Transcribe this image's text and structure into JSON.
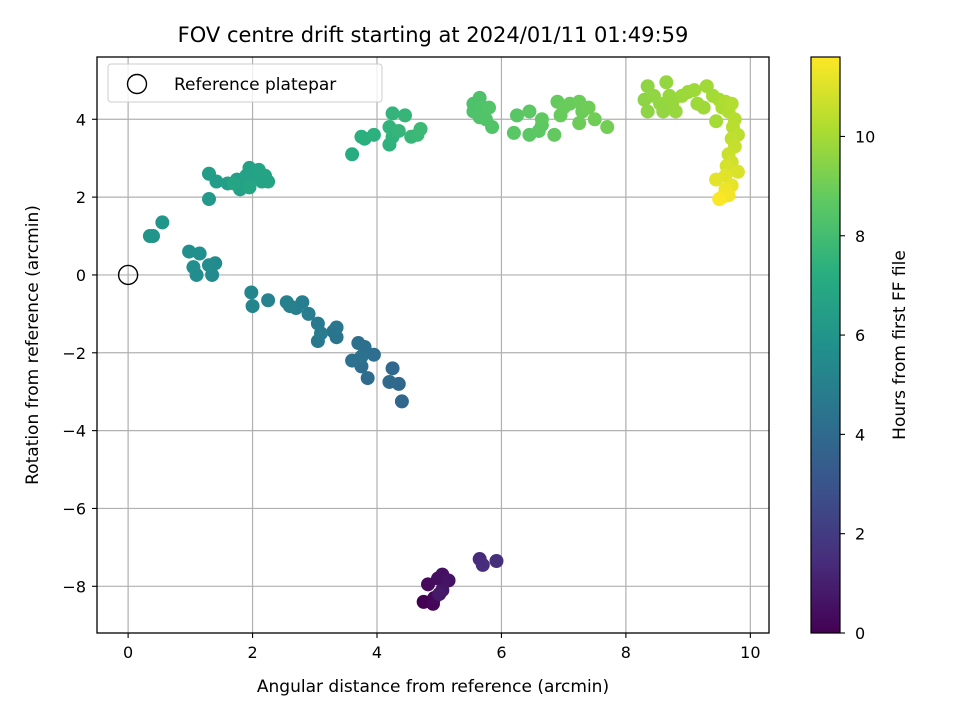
{
  "chart_data": {
    "type": "scatter",
    "title": "FOV centre drift starting at 2024/01/11 01:49:59",
    "xlabel": "Angular distance from reference (arcmin)",
    "ylabel": "Rotation from reference (arcmin)",
    "xlim": [
      -0.5,
      10.3
    ],
    "ylim": [
      -9.2,
      5.6
    ],
    "xticks": [
      0,
      2,
      4,
      6,
      8,
      10
    ],
    "yticks": [
      -8,
      -6,
      -4,
      -2,
      0,
      2,
      4
    ],
    "grid": true,
    "legend": {
      "placement": "top-left",
      "entries": [
        "Reference platepar"
      ]
    },
    "reference_point": {
      "x": 0,
      "y": 0,
      "marker": "open-circle",
      "color": "#000000"
    },
    "colorbar": {
      "label": "Hours from first FF file",
      "range": [
        0,
        11.6
      ],
      "ticks": [
        0,
        2,
        4,
        6,
        8,
        10
      ],
      "colormap": "viridis"
    },
    "series": [
      {
        "points": [
          {
            "x": 4.75,
            "y": -8.4,
            "t": 0.0
          },
          {
            "x": 4.9,
            "y": -8.45,
            "t": 0.1
          },
          {
            "x": 4.92,
            "y": -8.3,
            "t": 0.2
          },
          {
            "x": 4.82,
            "y": -7.95,
            "t": 0.3
          },
          {
            "x": 4.98,
            "y": -7.8,
            "t": 0.4
          },
          {
            "x": 5.05,
            "y": -7.7,
            "t": 0.5
          },
          {
            "x": 5.15,
            "y": -7.85,
            "t": 0.6
          },
          {
            "x": 5.05,
            "y": -8.1,
            "t": 0.7
          },
          {
            "x": 5.0,
            "y": -8.2,
            "t": 0.8
          },
          {
            "x": 5.65,
            "y": -7.3,
            "t": 1.4
          },
          {
            "x": 5.7,
            "y": -7.45,
            "t": 1.5
          },
          {
            "x": 5.92,
            "y": -7.35,
            "t": 1.6
          },
          {
            "x": 4.4,
            "y": -3.25,
            "t": 3.9
          },
          {
            "x": 4.35,
            "y": -2.8,
            "t": 3.95
          },
          {
            "x": 4.25,
            "y": -2.4,
            "t": 4.0
          },
          {
            "x": 4.2,
            "y": -2.75,
            "t": 4.05
          },
          {
            "x": 3.85,
            "y": -2.65,
            "t": 4.1
          },
          {
            "x": 3.75,
            "y": -2.35,
            "t": 4.15
          },
          {
            "x": 3.95,
            "y": -2.05,
            "t": 4.2
          },
          {
            "x": 3.8,
            "y": -1.85,
            "t": 4.25
          },
          {
            "x": 3.7,
            "y": -1.75,
            "t": 4.3
          },
          {
            "x": 3.75,
            "y": -2.1,
            "t": 4.35
          },
          {
            "x": 3.6,
            "y": -2.2,
            "t": 4.4
          },
          {
            "x": 3.35,
            "y": -1.6,
            "t": 4.5
          },
          {
            "x": 3.3,
            "y": -1.45,
            "t": 4.55
          },
          {
            "x": 3.35,
            "y": -1.35,
            "t": 4.6
          },
          {
            "x": 3.05,
            "y": -1.7,
            "t": 4.7
          },
          {
            "x": 3.05,
            "y": -1.25,
            "t": 4.75
          },
          {
            "x": 3.1,
            "y": -1.5,
            "t": 4.8
          },
          {
            "x": 2.9,
            "y": -1.0,
            "t": 4.9
          },
          {
            "x": 2.8,
            "y": -0.7,
            "t": 4.95
          },
          {
            "x": 2.7,
            "y": -0.85,
            "t": 5.0
          },
          {
            "x": 2.6,
            "y": -0.8,
            "t": 5.05
          },
          {
            "x": 2.55,
            "y": -0.7,
            "t": 5.1
          },
          {
            "x": 2.25,
            "y": -0.65,
            "t": 5.2
          },
          {
            "x": 2.0,
            "y": -0.8,
            "t": 5.3
          },
          {
            "x": 1.98,
            "y": -0.45,
            "t": 5.35
          },
          {
            "x": 1.35,
            "y": 0.0,
            "t": 5.5
          },
          {
            "x": 1.4,
            "y": 0.3,
            "t": 5.55
          },
          {
            "x": 1.3,
            "y": 0.25,
            "t": 5.6
          },
          {
            "x": 1.1,
            "y": 0.0,
            "t": 5.65
          },
          {
            "x": 1.05,
            "y": 0.2,
            "t": 5.7
          },
          {
            "x": 1.15,
            "y": 0.55,
            "t": 5.75
          },
          {
            "x": 0.98,
            "y": 0.6,
            "t": 5.8
          },
          {
            "x": 0.4,
            "y": 1.0,
            "t": 6.0
          },
          {
            "x": 0.35,
            "y": 1.0,
            "t": 6.05
          },
          {
            "x": 0.55,
            "y": 1.35,
            "t": 6.1
          },
          {
            "x": 1.3,
            "y": 1.95,
            "t": 6.3
          },
          {
            "x": 1.3,
            "y": 2.6,
            "t": 6.4
          },
          {
            "x": 1.42,
            "y": 2.4,
            "t": 6.45
          },
          {
            "x": 1.6,
            "y": 2.35,
            "t": 6.5
          },
          {
            "x": 1.75,
            "y": 2.45,
            "t": 6.55
          },
          {
            "x": 1.85,
            "y": 2.3,
            "t": 6.6
          },
          {
            "x": 1.8,
            "y": 2.2,
            "t": 6.62
          },
          {
            "x": 1.9,
            "y": 2.55,
            "t": 6.65
          },
          {
            "x": 1.95,
            "y": 2.75,
            "t": 6.7
          },
          {
            "x": 2.05,
            "y": 2.5,
            "t": 6.72
          },
          {
            "x": 2.1,
            "y": 2.7,
            "t": 6.75
          },
          {
            "x": 2.15,
            "y": 2.4,
            "t": 6.78
          },
          {
            "x": 2.2,
            "y": 2.55,
            "t": 6.8
          },
          {
            "x": 2.25,
            "y": 2.4,
            "t": 6.82
          },
          {
            "x": 1.95,
            "y": 2.25,
            "t": 6.84
          },
          {
            "x": 1.7,
            "y": 2.35,
            "t": 6.86
          },
          {
            "x": 3.6,
            "y": 3.1,
            "t": 7.2
          },
          {
            "x": 3.8,
            "y": 3.5,
            "t": 7.3
          },
          {
            "x": 3.75,
            "y": 3.55,
            "t": 7.35
          },
          {
            "x": 3.95,
            "y": 3.6,
            "t": 7.4
          },
          {
            "x": 4.2,
            "y": 3.35,
            "t": 7.45
          },
          {
            "x": 4.25,
            "y": 3.55,
            "t": 7.5
          },
          {
            "x": 4.2,
            "y": 3.8,
            "t": 7.55
          },
          {
            "x": 4.25,
            "y": 4.15,
            "t": 7.6
          },
          {
            "x": 4.35,
            "y": 3.7,
            "t": 7.65
          },
          {
            "x": 4.45,
            "y": 4.1,
            "t": 7.7
          },
          {
            "x": 4.55,
            "y": 3.55,
            "t": 7.75
          },
          {
            "x": 4.65,
            "y": 3.6,
            "t": 7.8
          },
          {
            "x": 4.7,
            "y": 3.75,
            "t": 7.85
          },
          {
            "x": 5.55,
            "y": 4.4,
            "t": 8.3
          },
          {
            "x": 5.55,
            "y": 4.2,
            "t": 8.32
          },
          {
            "x": 5.65,
            "y": 4.55,
            "t": 8.35
          },
          {
            "x": 5.7,
            "y": 4.3,
            "t": 8.38
          },
          {
            "x": 5.65,
            "y": 4.05,
            "t": 8.4
          },
          {
            "x": 5.75,
            "y": 4.0,
            "t": 8.42
          },
          {
            "x": 5.85,
            "y": 3.8,
            "t": 8.45
          },
          {
            "x": 5.8,
            "y": 4.3,
            "t": 8.47
          },
          {
            "x": 6.25,
            "y": 4.1,
            "t": 8.6
          },
          {
            "x": 6.2,
            "y": 3.65,
            "t": 8.62
          },
          {
            "x": 6.45,
            "y": 3.6,
            "t": 8.65
          },
          {
            "x": 6.45,
            "y": 4.2,
            "t": 8.68
          },
          {
            "x": 6.6,
            "y": 3.7,
            "t": 8.7
          },
          {
            "x": 6.65,
            "y": 3.85,
            "t": 8.72
          },
          {
            "x": 6.65,
            "y": 4.0,
            "t": 8.75
          },
          {
            "x": 6.85,
            "y": 3.6,
            "t": 8.8
          },
          {
            "x": 6.9,
            "y": 4.45,
            "t": 8.85
          },
          {
            "x": 6.95,
            "y": 4.1,
            "t": 8.9
          },
          {
            "x": 7.0,
            "y": 4.3,
            "t": 8.92
          },
          {
            "x": 7.1,
            "y": 4.4,
            "t": 8.95
          },
          {
            "x": 7.25,
            "y": 4.45,
            "t": 8.98
          },
          {
            "x": 7.3,
            "y": 4.2,
            "t": 9.0
          },
          {
            "x": 7.25,
            "y": 3.9,
            "t": 9.02
          },
          {
            "x": 7.4,
            "y": 4.3,
            "t": 9.05
          },
          {
            "x": 7.5,
            "y": 4.0,
            "t": 9.08
          },
          {
            "x": 7.7,
            "y": 3.8,
            "t": 9.1
          },
          {
            "x": 8.3,
            "y": 4.5,
            "t": 9.6
          },
          {
            "x": 8.35,
            "y": 4.2,
            "t": 9.62
          },
          {
            "x": 8.35,
            "y": 4.85,
            "t": 9.65
          },
          {
            "x": 8.45,
            "y": 4.6,
            "t": 9.68
          },
          {
            "x": 8.55,
            "y": 4.4,
            "t": 9.7
          },
          {
            "x": 8.6,
            "y": 4.2,
            "t": 9.72
          },
          {
            "x": 8.65,
            "y": 4.95,
            "t": 9.75
          },
          {
            "x": 8.7,
            "y": 4.6,
            "t": 9.78
          },
          {
            "x": 8.75,
            "y": 4.45,
            "t": 9.8
          },
          {
            "x": 8.8,
            "y": 4.2,
            "t": 9.82
          },
          {
            "x": 8.9,
            "y": 4.6,
            "t": 9.85
          },
          {
            "x": 9.0,
            "y": 4.7,
            "t": 9.88
          },
          {
            "x": 9.1,
            "y": 4.75,
            "t": 9.9
          },
          {
            "x": 9.15,
            "y": 4.4,
            "t": 9.92
          },
          {
            "x": 9.25,
            "y": 4.3,
            "t": 9.95
          },
          {
            "x": 9.3,
            "y": 4.85,
            "t": 9.98
          },
          {
            "x": 9.4,
            "y": 4.6,
            "t": 10.0
          },
          {
            "x": 9.45,
            "y": 3.95,
            "t": 10.05
          },
          {
            "x": 9.5,
            "y": 4.5,
            "t": 10.1
          },
          {
            "x": 9.55,
            "y": 4.3,
            "t": 10.15
          },
          {
            "x": 9.6,
            "y": 4.45,
            "t": 10.2
          },
          {
            "x": 9.65,
            "y": 4.2,
            "t": 10.25
          },
          {
            "x": 9.7,
            "y": 4.4,
            "t": 10.3
          },
          {
            "x": 9.75,
            "y": 4.0,
            "t": 10.35
          },
          {
            "x": 9.72,
            "y": 3.8,
            "t": 10.4
          },
          {
            "x": 9.8,
            "y": 3.6,
            "t": 10.45
          },
          {
            "x": 9.7,
            "y": 3.5,
            "t": 10.5
          },
          {
            "x": 9.75,
            "y": 3.3,
            "t": 10.6
          },
          {
            "x": 9.65,
            "y": 3.1,
            "t": 10.7
          },
          {
            "x": 9.7,
            "y": 2.9,
            "t": 10.8
          },
          {
            "x": 9.62,
            "y": 2.8,
            "t": 10.9
          },
          {
            "x": 9.8,
            "y": 2.65,
            "t": 11.0
          },
          {
            "x": 9.6,
            "y": 2.55,
            "t": 11.1
          },
          {
            "x": 9.45,
            "y": 2.45,
            "t": 11.15
          },
          {
            "x": 9.7,
            "y": 2.3,
            "t": 11.2
          },
          {
            "x": 9.6,
            "y": 2.2,
            "t": 11.3
          },
          {
            "x": 9.65,
            "y": 2.05,
            "t": 11.4
          },
          {
            "x": 9.55,
            "y": 2.0,
            "t": 11.45
          },
          {
            "x": 9.5,
            "y": 1.95,
            "t": 11.55
          }
        ]
      }
    ]
  }
}
